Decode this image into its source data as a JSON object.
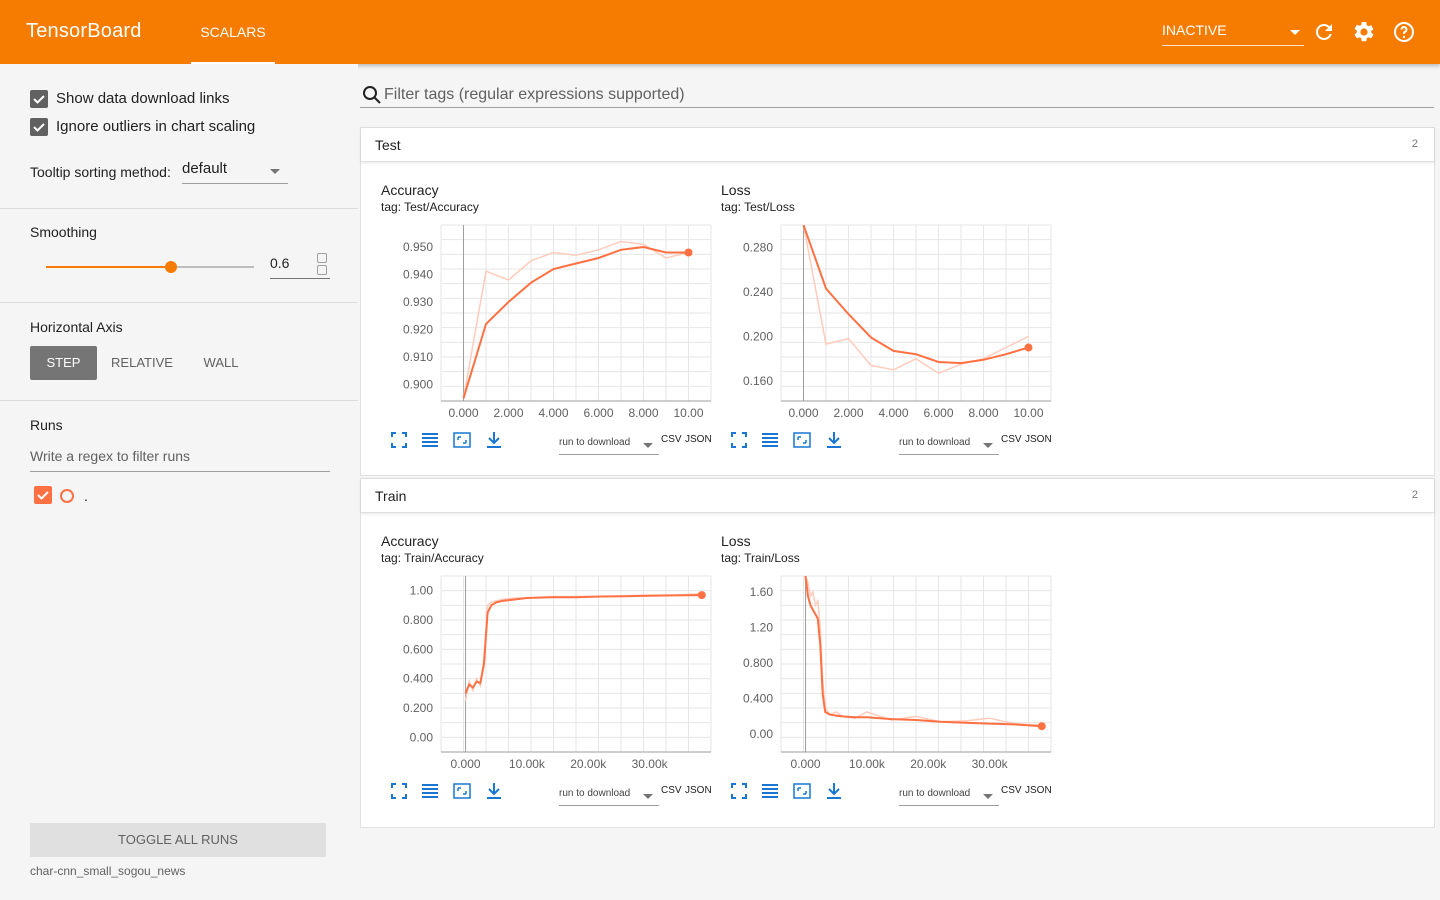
{
  "header": {
    "brand": "TensorBoard",
    "tab": "SCALARS",
    "run_state": "INACTIVE",
    "icons": [
      "refresh-icon",
      "gear-icon",
      "help-icon"
    ]
  },
  "sidebar": {
    "show_download": "Show data download links",
    "ignore_outliers": "Ignore outliers in chart scaling",
    "tooltip_label": "Tooltip sorting method:",
    "tooltip_value": "default",
    "smoothing_title": "Smoothing",
    "smoothing_value": "0.6",
    "smoothing_fraction": 0.6,
    "horizontal_axis_title": "Horizontal Axis",
    "axis_step": "STEP",
    "axis_relative": "RELATIVE",
    "axis_wall": "WALL",
    "runs_title": "Runs",
    "runs_filter_placeholder": "Write a regex to filter runs",
    "run_name": ".",
    "toggle_all": "TOGGLE ALL RUNS",
    "logdir": "char-cnn_small_sogou_news"
  },
  "filter": {
    "placeholder": "Filter tags (regular expressions supported)"
  },
  "panels": [
    {
      "title": "Test",
      "count": "2"
    },
    {
      "title": "Train",
      "count": "2"
    }
  ],
  "card_common": {
    "run_to_download": "run to download",
    "csv": "CSV",
    "json": "JSON"
  },
  "cards": {
    "test_accuracy": {
      "title": "Accuracy",
      "tag": "tag: Test/Accuracy"
    },
    "test_loss": {
      "title": "Loss",
      "tag": "tag: Test/Loss"
    },
    "train_accuracy": {
      "title": "Accuracy",
      "tag": "tag: Train/Accuracy"
    },
    "train_loss": {
      "title": "Loss",
      "tag": "tag: Train/Loss"
    }
  },
  "colors": {
    "accent": "#f57c00",
    "series": "#ff7043",
    "series_raw": "#ffccbc"
  },
  "chart_data": [
    {
      "id": "test_accuracy",
      "type": "line",
      "title": "Accuracy",
      "xticks": [
        "0.000",
        "2.000",
        "4.000",
        "6.000",
        "8.000",
        "10.00"
      ],
      "yticks": [
        "0.900",
        "0.910",
        "0.920",
        "0.930",
        "0.940",
        "0.950"
      ],
      "xlim": [
        -1,
        11
      ],
      "ylim": [
        0.894,
        0.958
      ],
      "series": [
        {
          "x": [
            0,
            1,
            2,
            3,
            4,
            5,
            6,
            7,
            8,
            9,
            10
          ],
          "values": [
            0.895,
            0.9412,
            0.938,
            0.945,
            0.948,
            0.947,
            0.949,
            0.952,
            0.951,
            0.946,
            0.948
          ],
          "raw": true
        },
        {
          "x": [
            0,
            1,
            2,
            3,
            4,
            5,
            6,
            7,
            8,
            9,
            10
          ],
          "values": [
            0.895,
            0.922,
            0.93,
            0.937,
            0.942,
            0.944,
            0.946,
            0.949,
            0.95,
            0.948,
            0.948
          ]
        }
      ]
    },
    {
      "id": "test_loss",
      "type": "line",
      "title": "Loss",
      "xticks": [
        "0.000",
        "2.000",
        "4.000",
        "6.000",
        "8.000",
        "10.00"
      ],
      "yticks": [
        "0.160",
        "0.200",
        "0.240",
        "0.280"
      ],
      "xlim": [
        -1,
        11
      ],
      "ylim": [
        0.142,
        0.3
      ],
      "series": [
        {
          "x": [
            0,
            1,
            2,
            3,
            4,
            5,
            6,
            7,
            8,
            9,
            10
          ],
          "values": [
            0.3,
            0.193,
            0.198,
            0.174,
            0.17,
            0.18,
            0.167,
            0.175,
            0.18,
            0.19,
            0.2
          ],
          "raw": true
        },
        {
          "x": [
            0,
            1,
            2,
            3,
            4,
            5,
            6,
            7,
            8,
            9,
            10
          ],
          "values": [
            0.3,
            0.243,
            0.22,
            0.199,
            0.187,
            0.184,
            0.177,
            0.176,
            0.179,
            0.184,
            0.19
          ]
        }
      ]
    },
    {
      "id": "train_accuracy",
      "type": "line",
      "title": "Accuracy",
      "xticks": [
        "0.000",
        "10.00k",
        "20.00k",
        "30.00k"
      ],
      "xtick_values": [
        0,
        10000,
        20000,
        30000
      ],
      "yticks": [
        "0.00",
        "0.200",
        "0.400",
        "0.600",
        "0.800",
        "1.00"
      ],
      "ytick_values": [
        0,
        0.2,
        0.4,
        0.6,
        0.8,
        1.0
      ],
      "xlim": [
        -4000,
        40000
      ],
      "ylim": [
        -0.1,
        1.1
      ],
      "series": [
        {
          "x": [
            0,
            600,
            1200,
            1800,
            2400,
            3000,
            3600,
            4200,
            5000,
            6000,
            8000,
            10000,
            14000,
            18000,
            22000,
            26000,
            30000,
            34000,
            38500
          ],
          "values": [
            0.25,
            0.38,
            0.32,
            0.4,
            0.35,
            0.55,
            0.9,
            0.92,
            0.93,
            0.94,
            0.95,
            0.95,
            0.96,
            0.96,
            0.96,
            0.965,
            0.97,
            0.97,
            0.98
          ],
          "raw": true
        },
        {
          "x": [
            0,
            600,
            1200,
            1800,
            2400,
            3000,
            3600,
            4200,
            5000,
            6000,
            8000,
            10000,
            14000,
            18000,
            22000,
            26000,
            30000,
            34000,
            38500
          ],
          "values": [
            0.3,
            0.36,
            0.34,
            0.38,
            0.37,
            0.5,
            0.85,
            0.9,
            0.92,
            0.93,
            0.94,
            0.95,
            0.955,
            0.955,
            0.96,
            0.962,
            0.965,
            0.968,
            0.97
          ]
        }
      ]
    },
    {
      "id": "train_loss",
      "type": "line",
      "title": "Loss",
      "xticks": [
        "0.000",
        "10.00k",
        "20.00k",
        "30.00k"
      ],
      "xtick_values": [
        0,
        10000,
        20000,
        30000
      ],
      "yticks": [
        "0.00",
        "0.400",
        "0.800",
        "1.20",
        "1.60"
      ],
      "ytick_values": [
        0,
        0.4,
        0.8,
        1.2,
        1.6
      ],
      "xlim": [
        -4000,
        40000
      ],
      "ylim": [
        -0.2,
        1.78
      ],
      "series": [
        {
          "x": [
            0,
            400,
            800,
            1200,
            1600,
            2000,
            2400,
            2800,
            3200,
            4000,
            5000,
            6000,
            8000,
            10000,
            14000,
            18000,
            22000,
            26000,
            30000,
            34000,
            38500
          ],
          "values": [
            1.78,
            1.7,
            1.55,
            1.6,
            1.45,
            1.5,
            1.2,
            0.6,
            0.3,
            0.22,
            0.25,
            0.2,
            0.18,
            0.25,
            0.16,
            0.2,
            0.14,
            0.15,
            0.18,
            0.12,
            0.1
          ],
          "raw": true
        },
        {
          "x": [
            0,
            400,
            800,
            1200,
            1600,
            2000,
            2400,
            2800,
            3200,
            4000,
            5000,
            6000,
            8000,
            10000,
            14000,
            18000,
            22000,
            26000,
            30000,
            34000,
            38500
          ],
          "values": [
            1.78,
            1.55,
            1.45,
            1.4,
            1.35,
            1.3,
            1.0,
            0.45,
            0.25,
            0.22,
            0.21,
            0.2,
            0.19,
            0.19,
            0.17,
            0.16,
            0.14,
            0.13,
            0.12,
            0.11,
            0.09
          ]
        }
      ]
    }
  ]
}
